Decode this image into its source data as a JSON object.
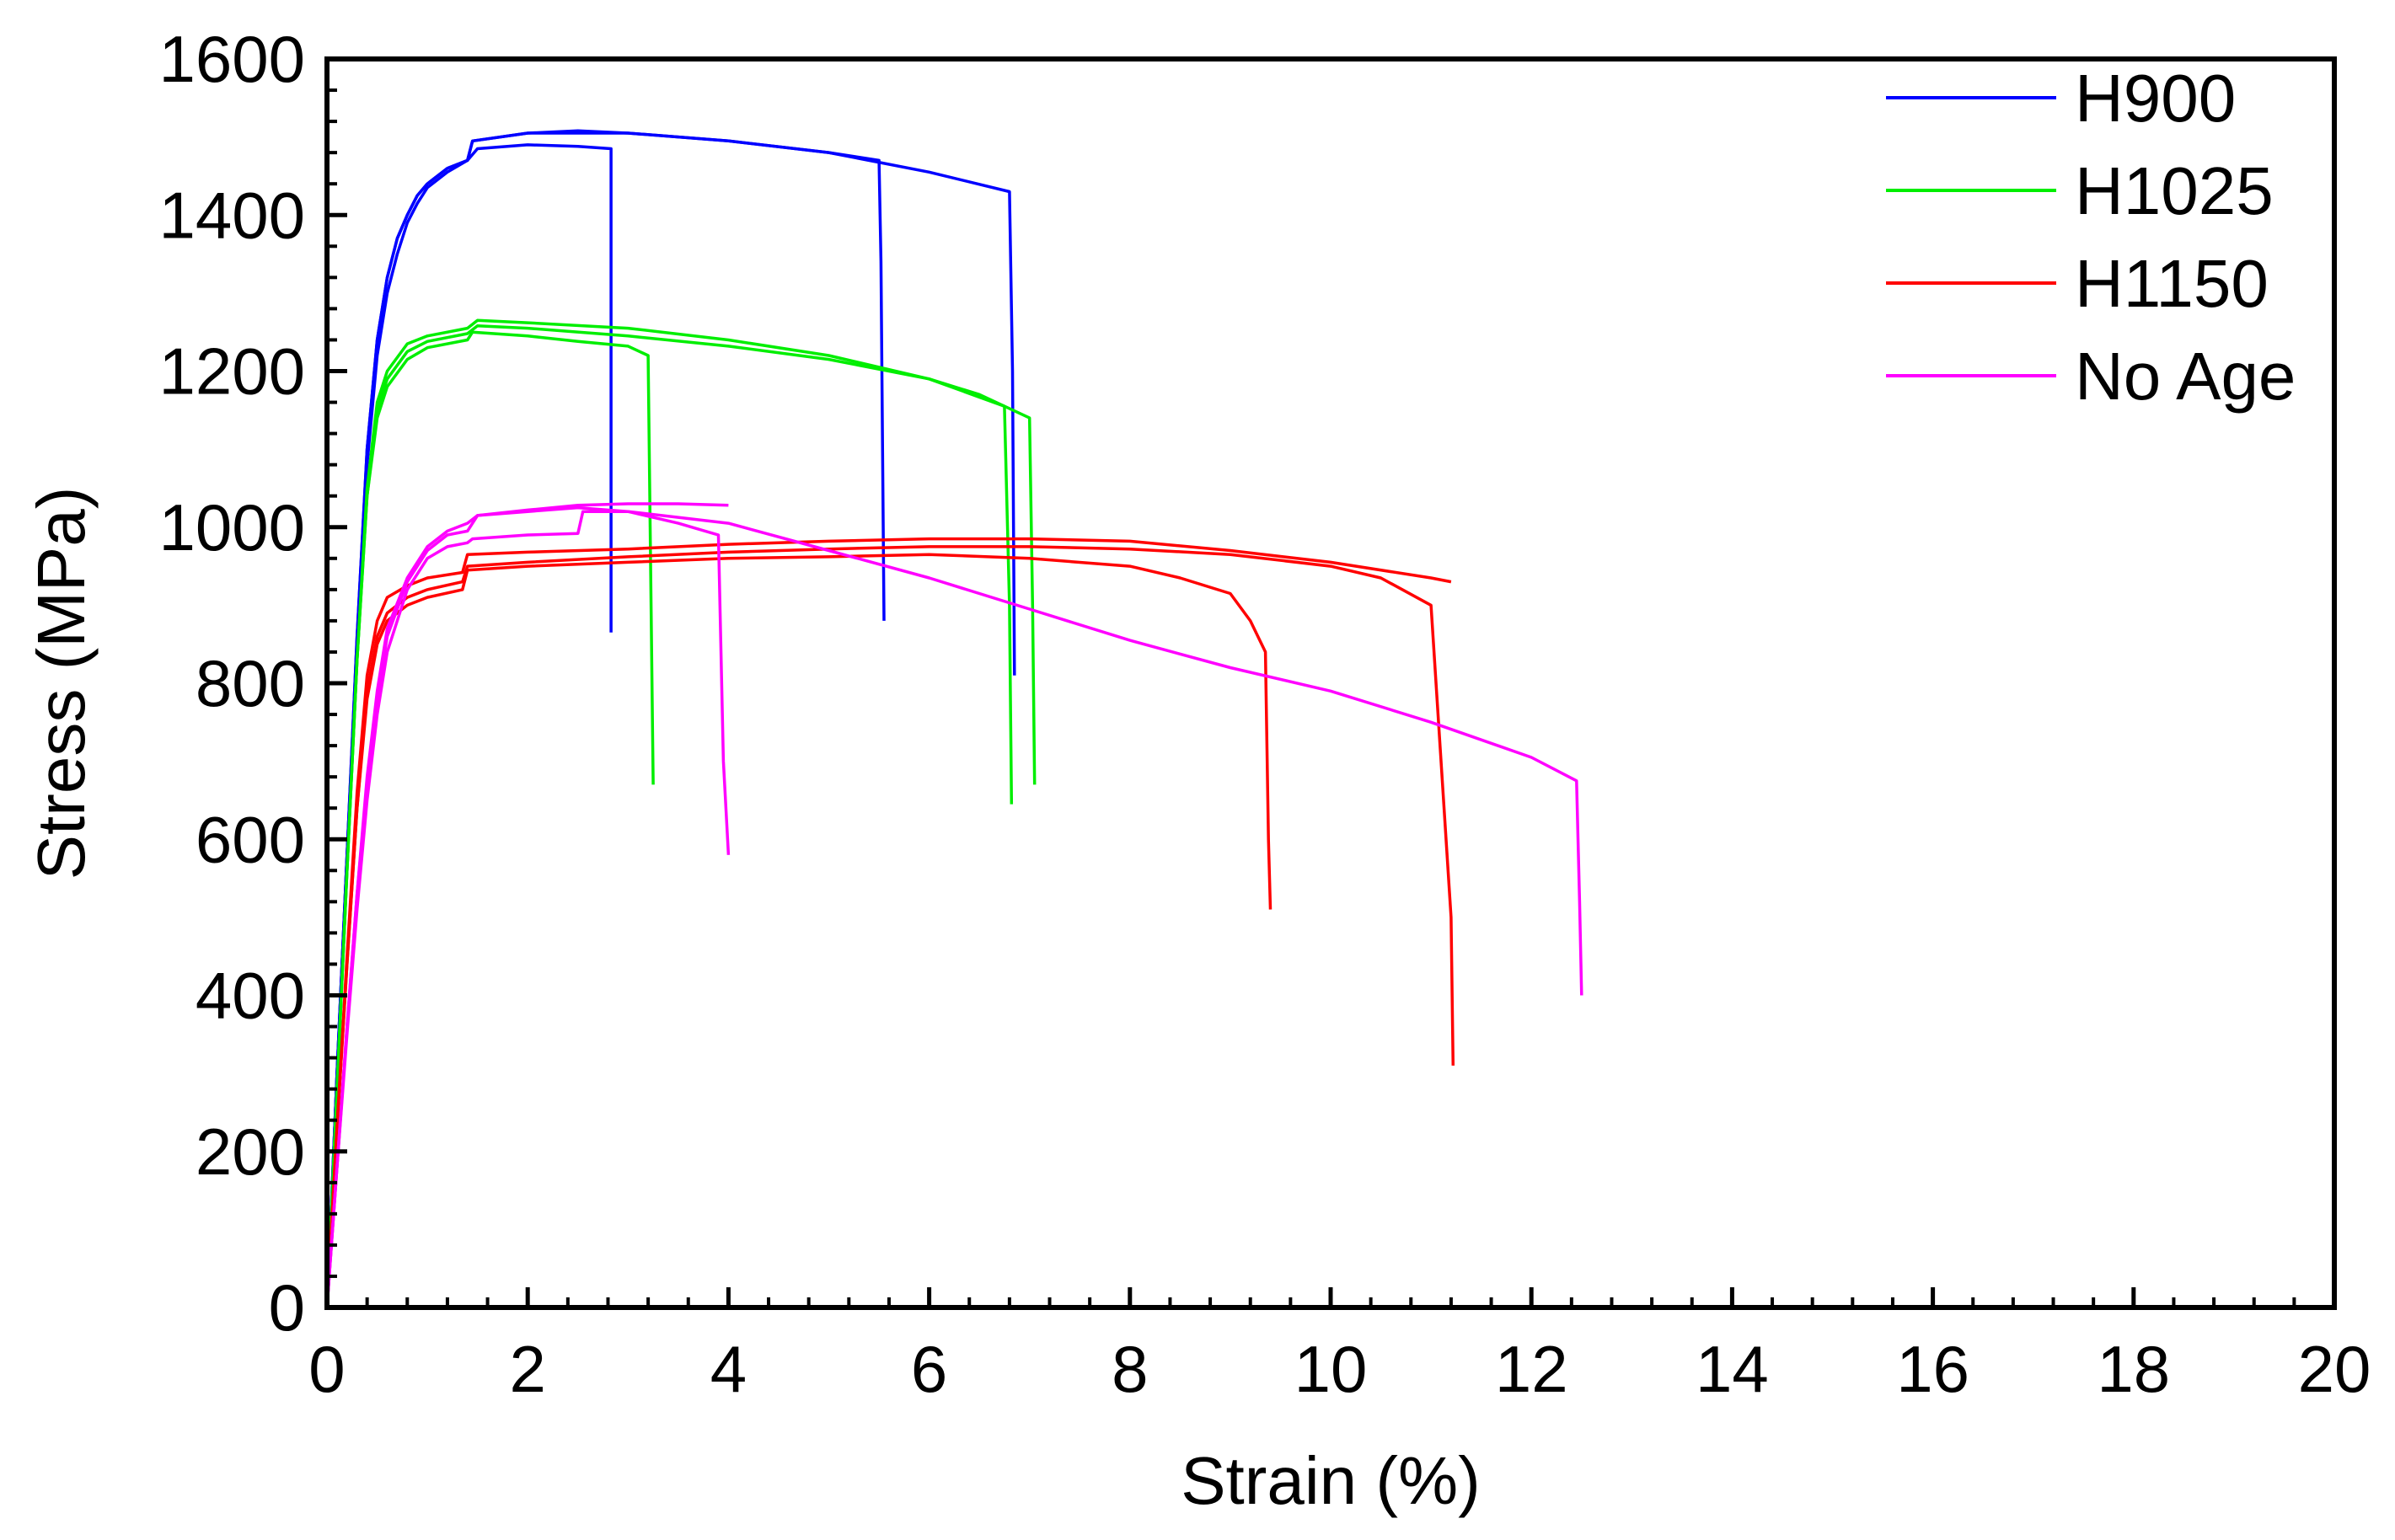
{
  "chart_data": {
    "type": "line",
    "title": "",
    "xlabel": "Strain (%)",
    "ylabel": "Stress (MPa)",
    "xlim": [
      0,
      20
    ],
    "ylim": [
      0,
      1600
    ],
    "xticks": [
      "0",
      "2",
      "4",
      "6",
      "8",
      "10",
      "12",
      "14",
      "16",
      "18",
      "20"
    ],
    "yticks": [
      "0",
      "200",
      "400",
      "600",
      "800",
      "1000",
      "1200",
      "1400",
      "1600"
    ],
    "grid": false,
    "legend_position": "top-right",
    "series": [
      {
        "name": "H900",
        "color": "#0000ff",
        "show_in_legend": true,
        "x": [
          0,
          0.1,
          0.2,
          0.3,
          0.4,
          0.5,
          0.6,
          0.7,
          0.8,
          0.9,
          1.0,
          1.2,
          1.4,
          1.5,
          2.0,
          2.5,
          2.83,
          2.83
        ],
        "y": [
          0,
          300,
          580,
          850,
          1080,
          1220,
          1300,
          1350,
          1390,
          1415,
          1435,
          1455,
          1470,
          1485,
          1490,
          1488,
          1485,
          865
        ]
      },
      {
        "name": "H900",
        "color": "#0000ff",
        "show_in_legend": false,
        "x": [
          0,
          0.1,
          0.2,
          0.3,
          0.4,
          0.5,
          0.6,
          0.7,
          0.8,
          0.9,
          1.0,
          1.2,
          1.4,
          1.45,
          2.0,
          2.5,
          3.0,
          4.0,
          5.0,
          5.5,
          5.52,
          5.55
        ],
        "y": [
          0,
          300,
          580,
          860,
          1100,
          1240,
          1320,
          1370,
          1400,
          1425,
          1440,
          1460,
          1470,
          1495,
          1505,
          1508,
          1505,
          1495,
          1480,
          1470,
          1340,
          880
        ]
      },
      {
        "name": "H900",
        "color": "#0000ff",
        "show_in_legend": false,
        "x": [
          0,
          0.1,
          0.2,
          0.3,
          0.4,
          0.5,
          0.6,
          0.7,
          0.8,
          0.9,
          1.0,
          1.2,
          1.4,
          1.45,
          2.0,
          3.0,
          4.0,
          5.0,
          6.0,
          6.8,
          6.83,
          6.85
        ],
        "y": [
          0,
          300,
          580,
          860,
          1100,
          1240,
          1320,
          1370,
          1400,
          1425,
          1440,
          1460,
          1470,
          1495,
          1505,
          1505,
          1495,
          1480,
          1455,
          1430,
          1200,
          810
        ]
      },
      {
        "name": "H1025",
        "color": "#00ee00",
        "show_in_legend": true,
        "x": [
          0,
          0.1,
          0.2,
          0.3,
          0.4,
          0.5,
          0.6,
          0.8,
          1.0,
          1.4,
          1.45,
          2.0,
          2.5,
          3.0,
          3.2,
          3.22,
          3.25
        ],
        "y": [
          0,
          280,
          560,
          830,
          1040,
          1140,
          1180,
          1215,
          1230,
          1240,
          1250,
          1245,
          1238,
          1232,
          1220,
          1000,
          670
        ]
      },
      {
        "name": "H1025",
        "color": "#00ee00",
        "show_in_legend": false,
        "x": [
          0,
          0.1,
          0.2,
          0.3,
          0.4,
          0.5,
          0.6,
          0.8,
          1.0,
          1.4,
          1.5,
          2.0,
          3.0,
          4.0,
          5.0,
          6.0,
          6.75,
          6.8,
          6.82
        ],
        "y": [
          0,
          280,
          560,
          830,
          1040,
          1150,
          1190,
          1225,
          1238,
          1248,
          1258,
          1255,
          1245,
          1232,
          1215,
          1190,
          1155,
          900,
          645
        ]
      },
      {
        "name": "H1025",
        "color": "#00ee00",
        "show_in_legend": false,
        "x": [
          0,
          0.1,
          0.2,
          0.3,
          0.4,
          0.5,
          0.6,
          0.8,
          1.0,
          1.4,
          1.5,
          2.0,
          3.0,
          4.0,
          5.0,
          6.0,
          6.5,
          7.0,
          7.03,
          7.05
        ],
        "y": [
          0,
          280,
          560,
          830,
          1050,
          1160,
          1200,
          1235,
          1245,
          1255,
          1265,
          1262,
          1255,
          1240,
          1220,
          1190,
          1170,
          1140,
          900,
          670
        ]
      },
      {
        "name": "H1150",
        "color": "#ff0000",
        "show_in_legend": true,
        "x": [
          0,
          0.1,
          0.2,
          0.3,
          0.4,
          0.5,
          0.6,
          0.8,
          1.0,
          1.35,
          1.4,
          2.0,
          3.0,
          4.0,
          5.0,
          6.0,
          7.0,
          8.0,
          8.5,
          9.0,
          9.2,
          9.35,
          9.38,
          9.4
        ],
        "y": [
          0,
          230,
          440,
          640,
          780,
          850,
          880,
          900,
          910,
          920,
          945,
          950,
          955,
          960,
          962,
          965,
          960,
          950,
          935,
          915,
          880,
          840,
          600,
          510
        ]
      },
      {
        "name": "H1150",
        "color": "#ff0000",
        "show_in_legend": false,
        "x": [
          0,
          0.1,
          0.2,
          0.3,
          0.4,
          0.5,
          0.6,
          0.8,
          1.0,
          1.35,
          1.4,
          2.0,
          3.0,
          4.0,
          5.0,
          6.0,
          7.0,
          8.0,
          9.0,
          10.0,
          10.5,
          11.0,
          11.1,
          11.2,
          11.22
        ],
        "y": [
          0,
          230,
          440,
          640,
          790,
          860,
          890,
          910,
          920,
          930,
          950,
          955,
          962,
          968,
          972,
          975,
          975,
          972,
          965,
          950,
          935,
          900,
          700,
          500,
          310
        ]
      },
      {
        "name": "H1150",
        "color": "#ff0000",
        "show_in_legend": false,
        "x": [
          0,
          0.1,
          0.2,
          0.3,
          0.4,
          0.5,
          0.6,
          0.8,
          1.0,
          1.35,
          1.4,
          2.0,
          3.0,
          4.0,
          5.0,
          6.0,
          7.0,
          8.0,
          9.0,
          10.0,
          11.0,
          11.2
        ],
        "y": [
          0,
          230,
          450,
          660,
          810,
          880,
          910,
          925,
          935,
          942,
          965,
          968,
          972,
          978,
          982,
          985,
          985,
          982,
          970,
          955,
          935,
          930
        ]
      },
      {
        "name": "No Age",
        "color": "#ff00ff",
        "show_in_legend": true,
        "x": [
          0,
          0.1,
          0.2,
          0.3,
          0.4,
          0.5,
          0.6,
          0.8,
          1.0,
          1.2,
          1.4,
          1.45,
          2.0,
          2.5,
          2.55,
          3.0,
          3.5,
          3.9,
          3.95,
          4.0
        ],
        "y": [
          0,
          180,
          350,
          510,
          650,
          760,
          840,
          920,
          960,
          975,
          980,
          985,
          990,
          992,
          1020,
          1020,
          1005,
          990,
          700,
          580
        ]
      },
      {
        "name": "No Age",
        "color": "#ff00ff",
        "show_in_legend": false,
        "x": [
          0,
          0.1,
          0.2,
          0.3,
          0.4,
          0.5,
          0.6,
          0.8,
          1.0,
          1.2,
          1.4,
          1.5,
          2.0,
          2.5,
          3.0,
          3.5,
          4.0
        ],
        "y": [
          0,
          180,
          360,
          530,
          670,
          780,
          860,
          930,
          970,
          990,
          995,
          1015,
          1022,
          1028,
          1030,
          1030,
          1028
        ]
      },
      {
        "name": "No Age",
        "color": "#ff00ff",
        "show_in_legend": false,
        "x": [
          0,
          0.1,
          0.2,
          0.3,
          0.4,
          0.5,
          0.6,
          0.8,
          1.0,
          1.2,
          1.4,
          1.5,
          2.0,
          2.5,
          3.0,
          4.0,
          5.0,
          6.0,
          7.0,
          8.0,
          9.0,
          10.0,
          11.0,
          12.0,
          12.45,
          12.48,
          12.5
        ],
        "y": [
          0,
          180,
          360,
          530,
          680,
          790,
          870,
          935,
          975,
          995,
          1005,
          1015,
          1020,
          1025,
          1020,
          1005,
          970,
          935,
          895,
          855,
          820,
          790,
          750,
          705,
          675,
          520,
          400
        ]
      }
    ]
  }
}
